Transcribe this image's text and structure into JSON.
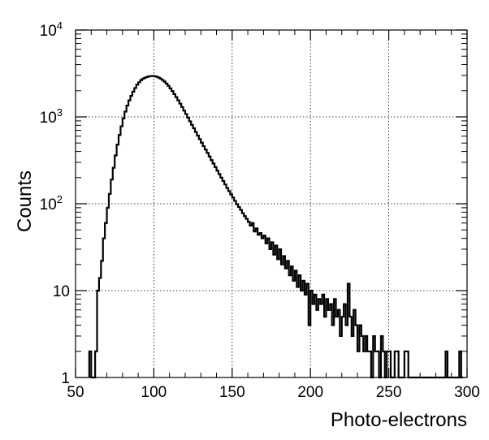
{
  "chart_data": {
    "type": "histogram",
    "title": "",
    "xlabel": "Photo-electrons",
    "ylabel": "Counts",
    "xlim": [
      50,
      300
    ],
    "ylim": [
      1,
      10000
    ],
    "yscale": "log",
    "grid": true,
    "x_ticks": [
      {
        "value": 50,
        "label": "50"
      },
      {
        "value": 100,
        "label": "100"
      },
      {
        "value": 150,
        "label": "150"
      },
      {
        "value": 200,
        "label": "200"
      },
      {
        "value": 250,
        "label": "250"
      },
      {
        "value": 300,
        "label": "300"
      }
    ],
    "y_ticks": [
      {
        "value": 1,
        "label": "1",
        "exp": ""
      },
      {
        "value": 10,
        "label": "10",
        "exp": ""
      },
      {
        "value": 100,
        "label": "10",
        "exp": "2"
      },
      {
        "value": 1000,
        "label": "10",
        "exp": "3"
      },
      {
        "value": 10000,
        "label": "10",
        "exp": "4"
      }
    ],
    "bin_width": 1.25,
    "bins": [
      [
        58.75,
        2
      ],
      [
        60.0,
        1
      ],
      [
        61.25,
        1
      ],
      [
        62.5,
        2
      ],
      [
        63.75,
        10
      ],
      [
        65.0,
        14
      ],
      [
        66.25,
        22
      ],
      [
        67.5,
        40
      ],
      [
        68.75,
        60
      ],
      [
        70.0,
        90
      ],
      [
        71.25,
        130
      ],
      [
        72.5,
        190
      ],
      [
        73.75,
        260
      ],
      [
        75.0,
        360
      ],
      [
        76.25,
        480
      ],
      [
        77.5,
        620
      ],
      [
        78.75,
        780
      ],
      [
        80.0,
        960
      ],
      [
        81.25,
        1150
      ],
      [
        82.5,
        1350
      ],
      [
        83.75,
        1550
      ],
      [
        85.0,
        1750
      ],
      [
        86.25,
        1950
      ],
      [
        87.5,
        2150
      ],
      [
        88.75,
        2350
      ],
      [
        90.0,
        2500
      ],
      [
        91.25,
        2650
      ],
      [
        92.5,
        2750
      ],
      [
        93.75,
        2820
      ],
      [
        95.0,
        2880
      ],
      [
        96.25,
        2920
      ],
      [
        97.5,
        2950
      ],
      [
        98.75,
        2960
      ],
      [
        100.0,
        2940
      ],
      [
        101.25,
        2900
      ],
      [
        102.5,
        2840
      ],
      [
        103.75,
        2760
      ],
      [
        105.0,
        2660
      ],
      [
        106.25,
        2550
      ],
      [
        107.5,
        2420
      ],
      [
        108.75,
        2280
      ],
      [
        110.0,
        2130
      ],
      [
        111.25,
        1980
      ],
      [
        112.5,
        1830
      ],
      [
        113.75,
        1690
      ],
      [
        115.0,
        1550
      ],
      [
        116.25,
        1420
      ],
      [
        117.5,
        1300
      ],
      [
        118.75,
        1180
      ],
      [
        120.0,
        1080
      ],
      [
        121.25,
        980
      ],
      [
        122.5,
        890
      ],
      [
        123.75,
        810
      ],
      [
        125.0,
        740
      ],
      [
        126.25,
        670
      ],
      [
        127.5,
        610
      ],
      [
        128.75,
        555
      ],
      [
        130.0,
        505
      ],
      [
        131.25,
        460
      ],
      [
        132.5,
        420
      ],
      [
        133.75,
        385
      ],
      [
        135.0,
        350
      ],
      [
        136.25,
        318
      ],
      [
        137.5,
        290
      ],
      [
        138.75,
        265
      ],
      [
        140.0,
        240
      ],
      [
        141.25,
        220
      ],
      [
        142.5,
        200
      ],
      [
        143.75,
        183
      ],
      [
        145.0,
        167
      ],
      [
        146.25,
        152
      ],
      [
        147.5,
        140
      ],
      [
        148.75,
        128
      ],
      [
        150.0,
        118
      ],
      [
        151.25,
        108
      ],
      [
        152.5,
        99
      ],
      [
        153.75,
        92
      ],
      [
        155.0,
        85
      ],
      [
        156.25,
        78
      ],
      [
        157.5,
        72
      ],
      [
        158.75,
        67
      ],
      [
        160.0,
        62
      ],
      [
        161.25,
        56
      ],
      [
        162.5,
        60
      ],
      [
        163.75,
        48
      ],
      [
        165.0,
        52
      ],
      [
        166.25,
        44
      ],
      [
        167.5,
        46
      ],
      [
        168.75,
        40
      ],
      [
        170.0,
        43
      ],
      [
        171.25,
        35
      ],
      [
        172.5,
        40
      ],
      [
        173.75,
        30
      ],
      [
        175.0,
        36
      ],
      [
        176.25,
        26
      ],
      [
        177.5,
        33
      ],
      [
        178.75,
        23
      ],
      [
        180.0,
        30
      ],
      [
        181.25,
        20
      ],
      [
        182.5,
        25
      ],
      [
        183.75,
        18
      ],
      [
        185.0,
        22
      ],
      [
        186.25,
        15
      ],
      [
        187.5,
        19
      ],
      [
        188.75,
        13
      ],
      [
        190.0,
        17
      ],
      [
        191.25,
        11
      ],
      [
        192.5,
        15
      ],
      [
        193.75,
        10
      ],
      [
        195.0,
        13
      ],
      [
        196.25,
        9
      ],
      [
        197.5,
        12
      ],
      [
        198.75,
        4
      ],
      [
        200.0,
        10
      ],
      [
        201.25,
        7
      ],
      [
        202.5,
        9
      ],
      [
        203.75,
        6
      ],
      [
        205.0,
        8
      ],
      [
        206.25,
        7
      ],
      [
        207.5,
        9
      ],
      [
        208.75,
        5
      ],
      [
        210.0,
        8
      ],
      [
        211.25,
        6
      ],
      [
        212.5,
        7
      ],
      [
        213.75,
        4
      ],
      [
        215.0,
        8
      ],
      [
        216.25,
        5
      ],
      [
        217.5,
        6
      ],
      [
        218.75,
        3
      ],
      [
        220.0,
        5
      ],
      [
        221.25,
        7
      ],
      [
        222.5,
        4
      ],
      [
        223.75,
        12
      ],
      [
        225.0,
        5
      ],
      [
        226.25,
        3
      ],
      [
        227.5,
        6
      ],
      [
        228.75,
        4
      ],
      [
        230.0,
        2
      ],
      [
        231.25,
        4
      ],
      [
        232.5,
        3
      ],
      [
        233.75,
        2
      ],
      [
        235.0,
        3
      ],
      [
        236.25,
        2
      ],
      [
        237.5,
        2
      ],
      [
        238.75,
        1
      ],
      [
        240.0,
        3
      ],
      [
        241.25,
        2
      ],
      [
        242.5,
        2
      ],
      [
        243.75,
        1
      ],
      [
        245.0,
        3
      ],
      [
        246.25,
        2
      ],
      [
        247.5,
        1
      ],
      [
        248.75,
        2
      ],
      [
        250.0,
        2
      ],
      [
        251.25,
        1
      ],
      [
        252.5,
        1
      ],
      [
        253.75,
        2
      ],
      [
        255.0,
        2
      ],
      [
        256.25,
        1
      ],
      [
        257.5,
        1
      ],
      [
        258.75,
        1
      ],
      [
        260.0,
        2
      ],
      [
        261.25,
        2
      ],
      [
        262.5,
        1
      ],
      [
        263.75,
        1
      ],
      [
        265.0,
        1
      ],
      [
        266.25,
        1
      ],
      [
        267.5,
        1
      ],
      [
        268.75,
        1
      ],
      [
        270.0,
        1
      ],
      [
        271.25,
        1
      ],
      [
        272.5,
        1
      ],
      [
        273.75,
        1
      ],
      [
        275.0,
        1
      ],
      [
        276.25,
        1
      ],
      [
        277.5,
        1
      ],
      [
        278.75,
        1
      ],
      [
        280.0,
        1
      ],
      [
        281.25,
        1
      ],
      [
        282.5,
        1
      ],
      [
        283.75,
        1
      ],
      [
        285.0,
        1
      ],
      [
        286.25,
        2
      ],
      [
        287.5,
        1
      ],
      [
        288.75,
        1
      ],
      [
        290.0,
        1
      ],
      [
        291.25,
        1
      ],
      [
        292.5,
        1
      ],
      [
        293.75,
        1
      ],
      [
        295.0,
        2
      ],
      [
        296.25,
        1
      ]
    ]
  }
}
